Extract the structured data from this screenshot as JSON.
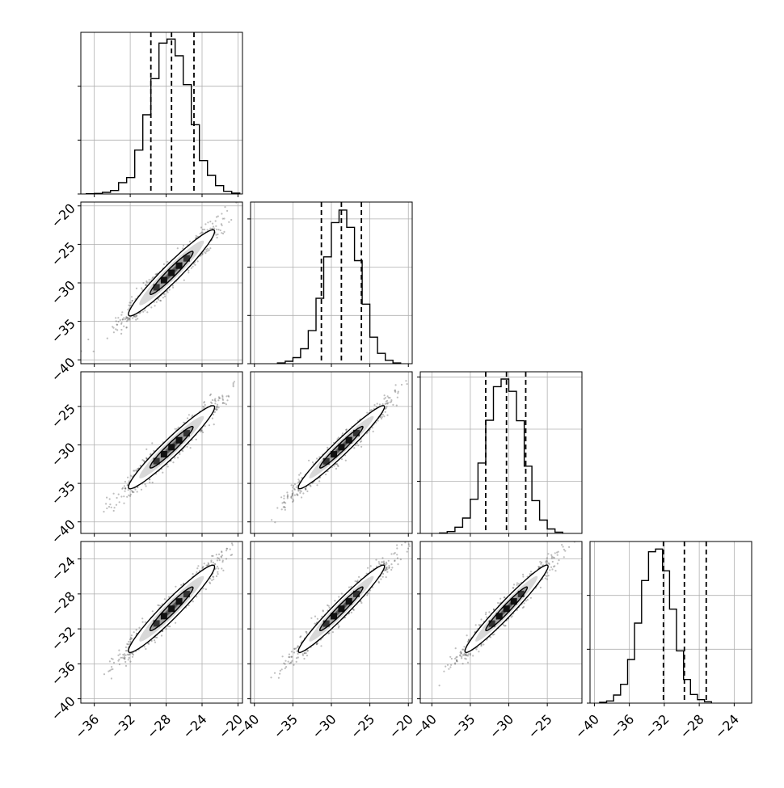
{
  "chart_data": {
    "type": "corner",
    "title": "",
    "n_params": 4,
    "colors": {
      "background": "#ffffff",
      "grid": "#b0b0b0",
      "frame": "#000000",
      "points": "#444444",
      "contour": "#000000"
    },
    "grid": true,
    "params": [
      {
        "index": 0,
        "range": [
          -37.5,
          -19.5
        ],
        "ticks": [
          -36,
          -32,
          -28,
          -24,
          -20
        ],
        "tick_labels": [
          "−36",
          "−32",
          "−28",
          "−24",
          "−20"
        ],
        "quantiles": [
          -29.7,
          -27.4,
          -24.9
        ]
      },
      {
        "index": 1,
        "range": [
          -40.5,
          -19.5
        ],
        "ticks": [
          -40,
          -35,
          -30,
          -25,
          -20
        ],
        "tick_labels": [
          "−40",
          "−35",
          "−30",
          "−25",
          "−20"
        ],
        "quantiles": [
          -31.3,
          -28.7,
          -26.1
        ]
      },
      {
        "index": 2,
        "range": [
          -41.5,
          -20.5
        ],
        "ticks": [
          -40,
          -35,
          -30,
          -25
        ],
        "tick_labels": [
          "−40",
          "−35",
          "−30",
          "−25"
        ],
        "quantiles": [
          -33.0,
          -30.3,
          -27.8
        ]
      },
      {
        "index": 3,
        "range": [
          -40.5,
          -22.0
        ],
        "ticks": [
          -40,
          -36,
          -32,
          -28,
          -24
        ],
        "tick_labels": [
          "−40",
          "−36",
          "−32",
          "−28",
          "−24"
        ],
        "quantiles": [
          -32.1,
          -29.7,
          -27.2
        ]
      }
    ],
    "histograms": [
      {
        "param": 0,
        "edges_start": -36.9,
        "bin_width": 0.9,
        "counts": [
          1,
          2,
          6,
          13,
          42,
          61,
          163,
          294,
          428,
          560,
          575,
          513,
          406,
          257,
          124,
          69,
          31,
          10,
          3
        ],
        "ymax": 600,
        "yticks": [
          0,
          200,
          400
        ]
      },
      {
        "param": 1,
        "edges_start": -37.0,
        "bin_width": 1.0,
        "counts": [
          3,
          10,
          25,
          62,
          137,
          271,
          443,
          585,
          637,
          565,
          427,
          247,
          110,
          43,
          14,
          3
        ],
        "ymax": 670,
        "yticks": [
          0,
          200,
          400,
          600
        ]
      },
      {
        "param": 2,
        "edges_start": -39.0,
        "bin_width": 1.0,
        "counts": [
          2,
          7,
          24,
          59,
          131,
          270,
          434,
          563,
          592,
          545,
          432,
          258,
          126,
          51,
          17,
          5
        ],
        "ymax": 620,
        "yticks": [
          0,
          200,
          400,
          600
        ]
      },
      {
        "param": 3,
        "edges_start": -39.4,
        "bin_width": 0.8,
        "counts": [
          3,
          8,
          30,
          70,
          162,
          297,
          455,
          562,
          572,
          491,
          349,
          194,
          88,
          32,
          13,
          5
        ],
        "ymax": 600,
        "yticks": [
          0,
          200,
          400
        ]
      }
    ],
    "pairs": [
      {
        "x_param": 0,
        "y_param": 1,
        "mean": [
          -27.4,
          -28.7
        ],
        "sd": [
          2.4,
          2.8
        ],
        "rho": 0.96
      },
      {
        "x_param": 0,
        "y_param": 2,
        "mean": [
          -27.4,
          -30.3
        ],
        "sd": [
          2.4,
          2.7
        ],
        "rho": 0.96
      },
      {
        "x_param": 1,
        "y_param": 2,
        "mean": [
          -28.7,
          -30.3
        ],
        "sd": [
          2.8,
          2.7
        ],
        "rho": 0.97
      },
      {
        "x_param": 0,
        "y_param": 3,
        "mean": [
          -27.4,
          -29.7
        ],
        "sd": [
          2.4,
          2.5
        ],
        "rho": 0.96
      },
      {
        "x_param": 1,
        "y_param": 3,
        "mean": [
          -28.7,
          -29.7
        ],
        "sd": [
          2.8,
          2.5
        ],
        "rho": 0.97
      },
      {
        "x_param": 2,
        "y_param": 3,
        "mean": [
          -30.3,
          -29.7
        ],
        "sd": [
          2.7,
          2.5
        ],
        "rho": 0.97
      }
    ],
    "contour_levels": [
      0.5,
      1.0,
      1.5,
      2.0
    ]
  }
}
